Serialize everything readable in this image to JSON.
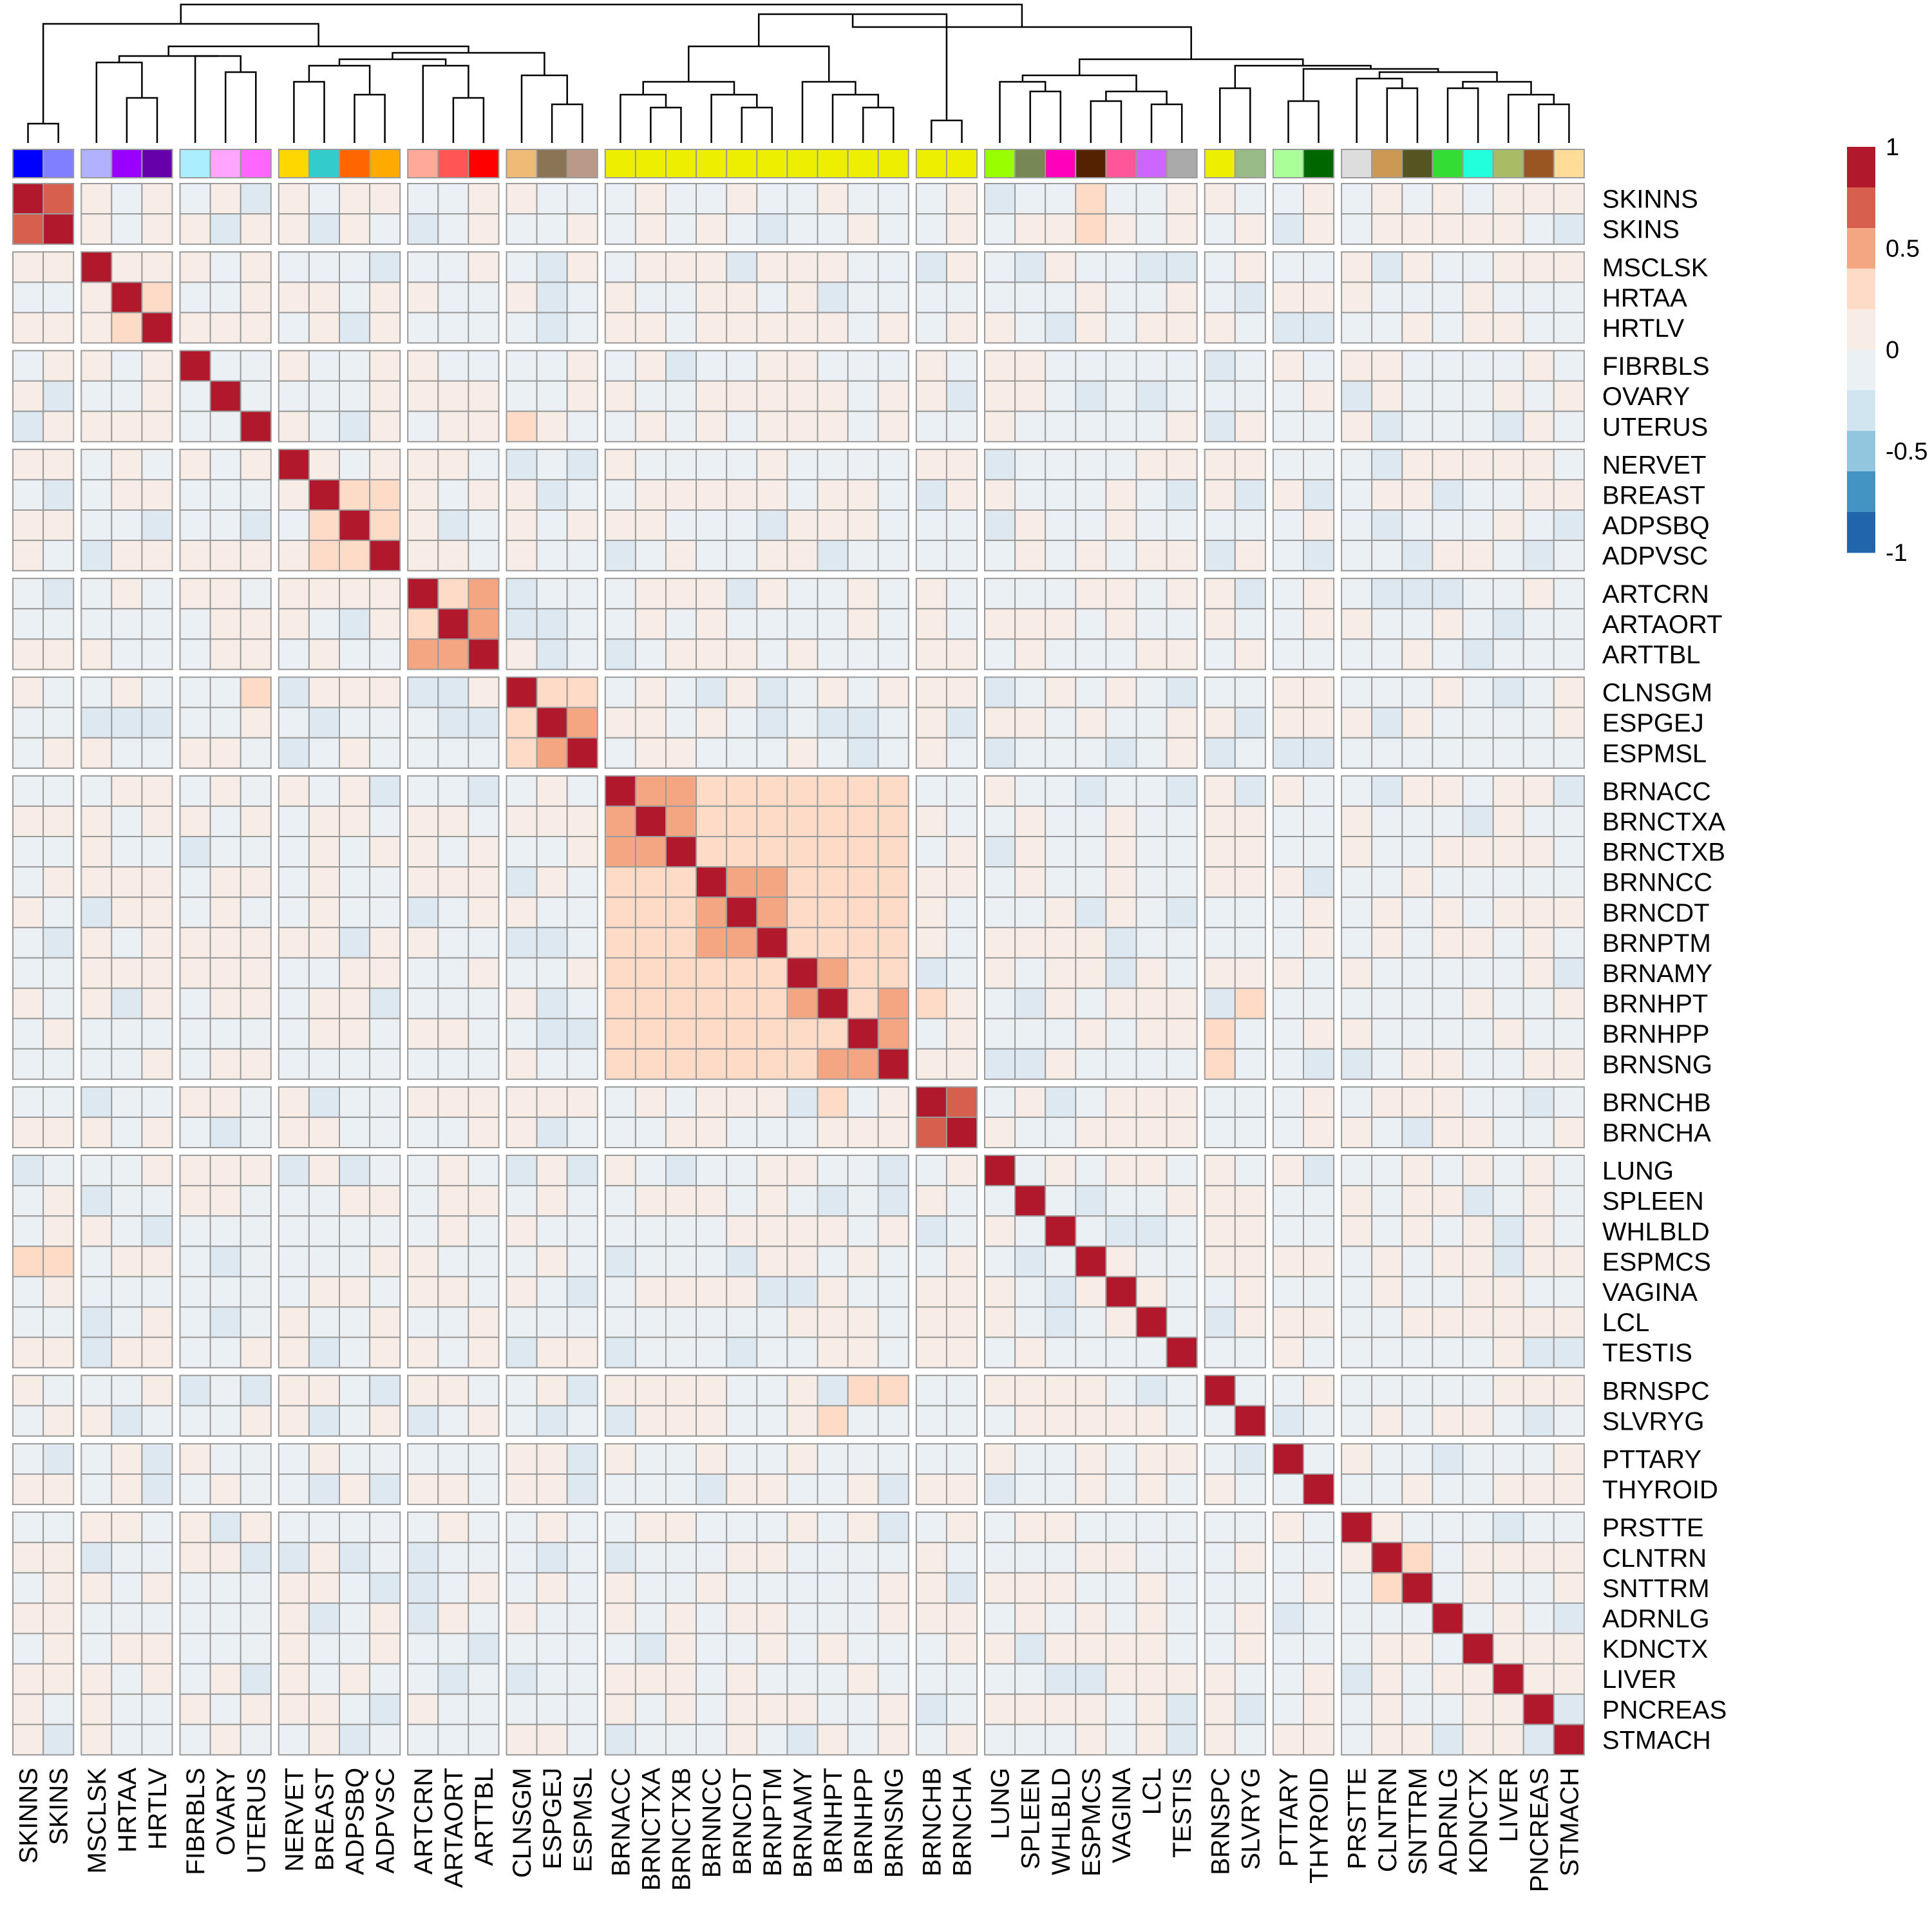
{
  "chart_data": {
    "type": "heatmap",
    "title": "",
    "xlabel": "",
    "ylabel": "",
    "labels": [
      "SKINNS",
      "SKINS",
      "MSCLSK",
      "HRTAA",
      "HRTLV",
      "FIBRBLS",
      "OVARY",
      "UTERUS",
      "NERVET",
      "BREAST",
      "ADPSBQ",
      "ADPVSC",
      "ARTCRN",
      "ARTAORT",
      "ARTTBL",
      "CLNSGM",
      "ESPGEJ",
      "ESPMSL",
      "BRNACC",
      "BRNCTXA",
      "BRNCTXB",
      "BRNNCC",
      "BRNCDT",
      "BRNPTM",
      "BRNAMY",
      "BRNHPT",
      "BRNHPP",
      "BRNSNG",
      "BRNCHB",
      "BRNCHA",
      "LUNG",
      "SPLEEN",
      "WHLBLD",
      "ESPMCS",
      "VAGINA",
      "LCL",
      "TESTIS",
      "BRNSPC",
      "SLVRYG",
      "PTTARY",
      "THYROID",
      "PRSTTE",
      "CLNTRN",
      "SNTTRM",
      "ADRNLG",
      "KDNCTX",
      "LIVER",
      "PNCREAS",
      "STMACH"
    ],
    "groups": [
      2,
      3,
      3,
      4,
      3,
      3,
      10,
      2,
      7,
      2,
      2,
      8
    ],
    "annotation_colors": [
      "#0000FF",
      "#7F7FFF",
      "#B1B1FF",
      "#9900FF",
      "#6600AA",
      "#AAEEFF",
      "#FFA5FF",
      "#FF66FF",
      "#FFD700",
      "#33CCCC",
      "#FF6600",
      "#FFAA00",
      "#FFAA99",
      "#FF5555",
      "#FF0000",
      "#EEBB77",
      "#8B7355",
      "#BB9988",
      "#EEEE00",
      "#EEEE00",
      "#EEEE00",
      "#EEEE00",
      "#EEEE00",
      "#EEEE00",
      "#EEEE00",
      "#EEEE00",
      "#EEEE00",
      "#EEEE00",
      "#EEEE00",
      "#EEEE00",
      "#99FF00",
      "#778855",
      "#FF00BB",
      "#552200",
      "#FF5599",
      "#CC66FF",
      "#AAAAAA",
      "#EEEE00",
      "#99BB88",
      "#AAFF99",
      "#006600",
      "#DDDDDD",
      "#CC9955",
      "#555522",
      "#33DD33",
      "#22FFDD",
      "#AABB66",
      "#995522",
      "#FFDD99"
    ],
    "value_range": [
      -1,
      1
    ],
    "legend": {
      "position": "top-right",
      "ticks": [
        "1",
        "0.5",
        "0",
        "-0.5",
        "-1"
      ],
      "tick_values": [
        1,
        0.5,
        0,
        -0.5,
        -1
      ],
      "colors": [
        "#B2182B",
        "#D6604D",
        "#F4A582",
        "#FDDBC7",
        "#F7ECE6",
        "#EBF0F4",
        "#D1E5F0",
        "#92C5DE",
        "#4393C3",
        "#2166AC"
      ]
    },
    "cell_colors": {
      "high": "#B2182B",
      "strong": "#D6604D",
      "medium": "#F4A582",
      "light": "#FDDBC7",
      "faint": "#F8ECE6",
      "neutral": "#EBF0F4",
      "cool": "#DDE8F0"
    },
    "cells": [
      {
        "r": "SKINNS",
        "c": "SKINS",
        "v": 0.75
      },
      {
        "r": "BREAST",
        "c": "ADPSBQ",
        "v": 0.3
      },
      {
        "r": "BREAST",
        "c": "ADPVSC",
        "v": 0.25
      },
      {
        "r": "ADPSBQ",
        "c": "ADPVSC",
        "v": 0.3
      },
      {
        "r": "ARTCRN",
        "c": "ARTAORT",
        "v": 0.3
      },
      {
        "r": "ARTCRN",
        "c": "ARTTBL",
        "v": 0.35
      },
      {
        "r": "ARTAORT",
        "c": "ARTTBL",
        "v": 0.5
      },
      {
        "r": "CLNSGM",
        "c": "ESPGEJ",
        "v": 0.3
      },
      {
        "r": "CLNSGM",
        "c": "ESPMSL",
        "v": 0.3
      },
      {
        "r": "ESPGEJ",
        "c": "ESPMSL",
        "v": 0.5
      },
      {
        "r": "MSCLSK",
        "c": "HRTAA",
        "v": 0.08
      },
      {
        "r": "MSCLSK",
        "c": "HRTLV",
        "v": 0.08
      },
      {
        "r": "HRTAA",
        "c": "HRTLV",
        "v": 0.2
      },
      {
        "r": "BRNACC",
        "c": "BRNCTXA",
        "v": 0.45
      },
      {
        "r": "BRNACC",
        "c": "BRNCTXB",
        "v": 0.4
      },
      {
        "r": "BRNCTXA",
        "c": "BRNCTXB",
        "v": 0.5
      },
      {
        "r": "BRNNCC",
        "c": "BRNCDT",
        "v": 0.45
      },
      {
        "r": "BRNNCC",
        "c": "BRNPTM",
        "v": 0.4
      },
      {
        "r": "BRNCDT",
        "c": "BRNPTM",
        "v": 0.45
      },
      {
        "r": "BRNAMY",
        "c": "BRNHPT",
        "v": 0.4
      },
      {
        "r": "BRNHPT",
        "c": "BRNSNG",
        "v": 0.45
      },
      {
        "r": "BRNHPP",
        "c": "BRNSNG",
        "v": 0.4
      },
      {
        "r": "BRNCHB",
        "c": "BRNCHA",
        "v": 0.75
      },
      {
        "r": "CLNTRN",
        "c": "SNTTRM",
        "v": 0.25
      },
      {
        "r": "SKINNS",
        "c": "ESPMCS",
        "v": 0.2
      },
      {
        "r": "SKINS",
        "c": "ESPMCS",
        "v": 0.2
      },
      {
        "r": "CLNSGM",
        "c": "UTERUS",
        "v": 0.2
      },
      {
        "r": "BRNSPC",
        "c": "BRNHPP",
        "v": 0.2
      },
      {
        "r": "BRNSPC",
        "c": "BRNSNG",
        "v": 0.2
      },
      {
        "r": "SLVRYG",
        "c": "BRNHPT",
        "v": 0.2
      },
      {
        "r": "BRNHPT",
        "c": "BRNCHB",
        "v": 0.2
      },
      {
        "r": "BRNHPP",
        "c": "BRNSPC",
        "v": 0.2
      },
      {
        "r": "BRNSNG",
        "c": "BRNSPC",
        "v": 0.2
      }
    ]
  }
}
